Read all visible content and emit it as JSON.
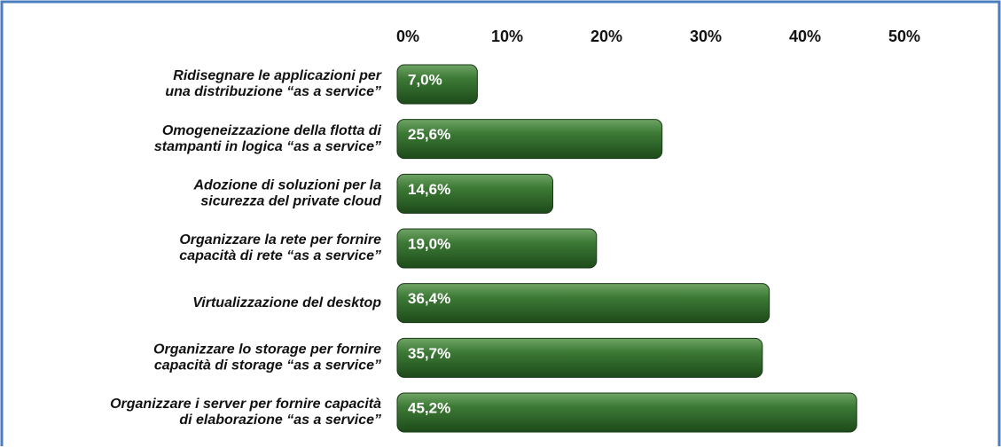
{
  "chart_data": {
    "type": "bar",
    "orientation": "horizontal",
    "categories": [
      [
        "Ridisegnare le applicazioni per",
        "una distribuzione “as a service”"
      ],
      [
        "Omogeneizzazione della flotta di",
        "stampanti in logica “as a service”"
      ],
      [
        "Adozione di soluzioni per la",
        "sicurezza del private cloud"
      ],
      [
        "Organizzare la rete per fornire",
        "capacità di rete “as a service”"
      ],
      [
        "Virtualizzazione del desktop"
      ],
      [
        "Organizzare lo storage per fornire",
        "capacità di storage “as a service”"
      ],
      [
        "Organizzare i server per fornire capacità",
        "di elaborazione “as a service”"
      ]
    ],
    "values": [
      7.0,
      25.6,
      14.6,
      19.0,
      36.4,
      35.7,
      45.2
    ],
    "value_labels": [
      "7,0%",
      "25,6%",
      "14,6%",
      "19,0%",
      "36,4%",
      "35,7%",
      "45,2%"
    ],
    "color": "#2f6b2a",
    "xlim": [
      0,
      50
    ],
    "xticks": [
      {
        "value": 0,
        "label": "0%"
      },
      {
        "value": 10,
        "label": "10%"
      },
      {
        "value": 20,
        "label": "20%"
      },
      {
        "value": 30,
        "label": "30%"
      },
      {
        "value": 40,
        "label": "40%"
      },
      {
        "value": 50,
        "label": "50%"
      }
    ],
    "grid": true
  }
}
